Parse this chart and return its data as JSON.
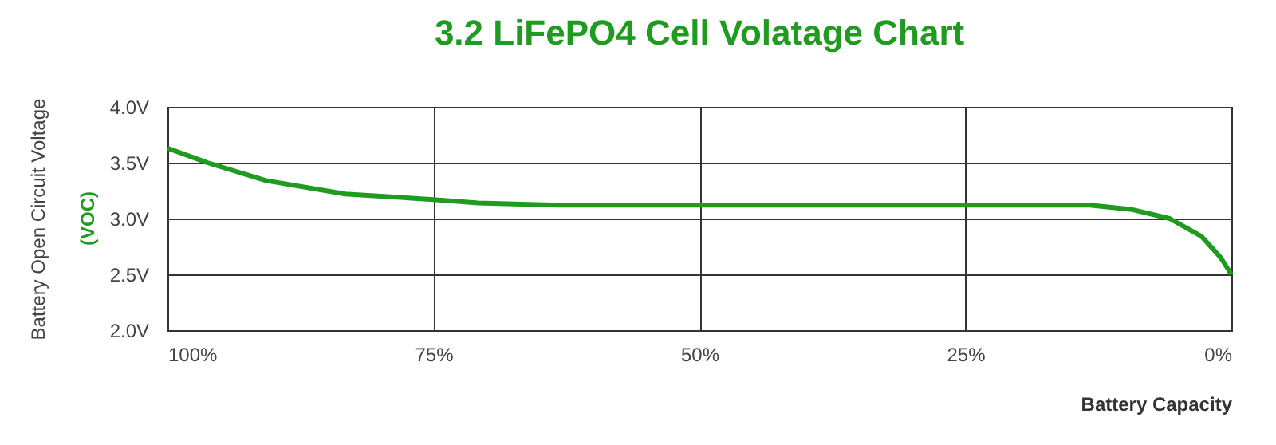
{
  "chart_data": {
    "type": "line",
    "title": "3.2 LiFePO4 Cell Volatage Chart",
    "xlabel": "Battery Capacity",
    "ylabel": "Battery Open Circuit Voltage",
    "annotations": [
      "(VOC)"
    ],
    "x": [
      100,
      96.25,
      90.75,
      83.3,
      75,
      70.8,
      63.3,
      50,
      25,
      13.3,
      9.3,
      5.8,
      2.8,
      1.0,
      0
    ],
    "series": [
      {
        "color": "#1f9b1f",
        "values": [
          3.63,
          3.5,
          3.34,
          3.22,
          3.17,
          3.14,
          3.12,
          3.12,
          3.12,
          3.12,
          3.08,
          3.0,
          2.84,
          2.65,
          2.5
        ]
      }
    ],
    "xlim": [
      100,
      0
    ],
    "xticks": [
      {
        "value": 100,
        "label": "100%"
      },
      {
        "value": 75,
        "label": "75%"
      },
      {
        "value": 50,
        "label": "50%"
      },
      {
        "value": 25,
        "label": "25%"
      },
      {
        "value": 0,
        "label": "0%"
      }
    ],
    "ylim": [
      2.0,
      4.0
    ],
    "yticks": [
      {
        "value": 2.0,
        "label": "2.0V"
      },
      {
        "value": 2.5,
        "label": "2.5V"
      },
      {
        "value": 3.0,
        "label": "3.0V"
      },
      {
        "value": 3.5,
        "label": "3.5V"
      },
      {
        "value": 4.0,
        "label": "4.0V"
      }
    ],
    "grid": true,
    "legend": false,
    "marker": "none",
    "line_style": "solid"
  }
}
